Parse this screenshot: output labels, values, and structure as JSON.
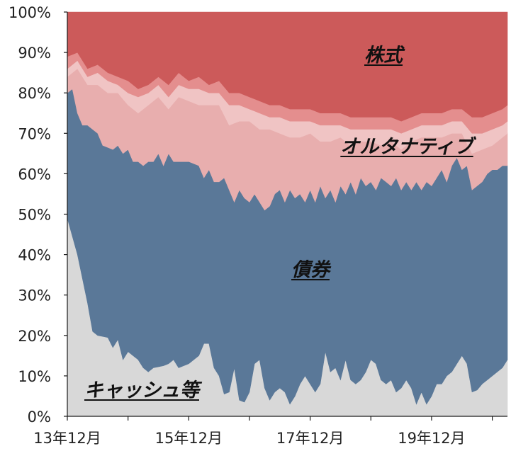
{
  "chart_data": {
    "type": "area",
    "stacked": true,
    "percent": true,
    "title": "",
    "xlabel": "",
    "ylabel": "",
    "ylim": [
      0,
      100
    ],
    "yticks": [
      "0%",
      "10%",
      "20%",
      "30%",
      "40%",
      "50%",
      "60%",
      "70%",
      "80%",
      "90%",
      "100%"
    ],
    "xticks": [
      {
        "x": 0,
        "label": "13年12月"
      },
      {
        "x": 24,
        "label": "15年12月"
      },
      {
        "x": 48,
        "label": "17年12月"
      },
      {
        "x": 72,
        "label": "19年12月"
      }
    ],
    "grid": false,
    "legend": "none",
    "x_count": 88,
    "series": [
      {
        "name": "キャッシュ等",
        "color": "#d8d8d8",
        "label": "キャッシュ等",
        "points": [
          [
            0,
            49
          ],
          [
            2,
            40
          ],
          [
            4,
            28
          ],
          [
            5,
            21
          ],
          [
            6,
            20
          ],
          [
            8,
            19.5
          ],
          [
            9,
            17
          ],
          [
            10,
            19
          ],
          [
            11,
            14
          ],
          [
            12,
            16
          ],
          [
            13,
            15
          ],
          [
            14,
            14
          ],
          [
            15,
            12
          ],
          [
            16,
            11
          ],
          [
            17,
            12
          ],
          [
            19,
            12.5
          ],
          [
            20,
            13
          ],
          [
            21,
            14
          ],
          [
            22,
            12
          ],
          [
            24,
            13
          ],
          [
            26,
            15
          ],
          [
            27,
            18
          ],
          [
            28,
            18
          ],
          [
            29,
            12
          ],
          [
            30,
            10
          ],
          [
            31,
            5.5
          ],
          [
            32,
            6
          ],
          [
            33,
            12
          ],
          [
            34,
            4
          ],
          [
            35,
            3.5
          ],
          [
            36,
            6
          ],
          [
            37,
            13
          ],
          [
            38,
            14
          ],
          [
            39,
            7
          ],
          [
            40,
            4
          ],
          [
            41,
            6
          ],
          [
            42,
            7
          ],
          [
            43,
            6
          ],
          [
            44,
            3
          ],
          [
            45,
            5
          ],
          [
            46,
            8
          ],
          [
            47,
            10
          ],
          [
            48,
            8
          ],
          [
            49,
            6
          ],
          [
            50,
            8
          ],
          [
            51,
            16
          ],
          [
            52,
            11
          ],
          [
            53,
            12
          ],
          [
            54,
            9
          ],
          [
            55,
            14
          ],
          [
            56,
            9
          ],
          [
            57,
            8
          ],
          [
            58,
            9
          ],
          [
            59,
            11
          ],
          [
            60,
            14
          ],
          [
            61,
            13
          ],
          [
            62,
            9
          ],
          [
            63,
            8
          ],
          [
            64,
            9
          ],
          [
            65,
            6
          ],
          [
            66,
            7
          ],
          [
            67,
            9
          ],
          [
            68,
            7
          ],
          [
            69,
            3
          ],
          [
            70,
            6
          ],
          [
            71,
            3
          ],
          [
            72,
            5
          ],
          [
            73,
            8
          ],
          [
            74,
            8
          ],
          [
            75,
            10
          ],
          [
            76,
            11
          ],
          [
            77,
            13
          ],
          [
            78,
            15
          ],
          [
            79,
            13
          ],
          [
            80,
            6
          ],
          [
            81,
            6.5
          ],
          [
            82,
            8
          ],
          [
            83,
            9
          ],
          [
            84,
            10
          ],
          [
            85,
            11
          ],
          [
            86,
            12
          ],
          [
            87,
            14
          ]
        ]
      },
      {
        "name": "債券",
        "color": "#5a7898",
        "label": "債券",
        "points": [
          [
            0,
            80
          ],
          [
            1,
            81
          ],
          [
            2,
            75
          ],
          [
            3,
            72
          ],
          [
            4,
            72
          ],
          [
            5,
            71
          ],
          [
            6,
            70
          ],
          [
            7,
            67
          ],
          [
            9,
            66
          ],
          [
            10,
            67
          ],
          [
            11,
            65
          ],
          [
            12,
            66
          ],
          [
            13,
            63
          ],
          [
            14,
            63
          ],
          [
            15,
            62
          ],
          [
            16,
            63
          ],
          [
            17,
            63
          ],
          [
            18,
            65
          ],
          [
            19,
            62
          ],
          [
            20,
            65
          ],
          [
            21,
            63
          ],
          [
            23,
            63
          ],
          [
            24,
            63
          ],
          [
            26,
            62
          ],
          [
            27,
            59
          ],
          [
            28,
            61
          ],
          [
            29,
            58
          ],
          [
            30,
            58
          ],
          [
            31,
            59
          ],
          [
            32,
            56
          ],
          [
            33,
            53
          ],
          [
            34,
            56
          ],
          [
            35,
            54
          ],
          [
            36,
            53
          ],
          [
            37,
            55
          ],
          [
            38,
            53
          ],
          [
            39,
            51
          ],
          [
            40,
            52
          ],
          [
            41,
            55
          ],
          [
            42,
            56
          ],
          [
            43,
            53
          ],
          [
            44,
            56
          ],
          [
            45,
            54
          ],
          [
            46,
            55
          ],
          [
            47,
            53
          ],
          [
            48,
            56
          ],
          [
            49,
            53
          ],
          [
            50,
            57
          ],
          [
            51,
            54
          ],
          [
            52,
            56
          ],
          [
            53,
            53
          ],
          [
            54,
            57
          ],
          [
            55,
            55
          ],
          [
            56,
            58
          ],
          [
            57,
            55
          ],
          [
            58,
            59
          ],
          [
            59,
            57
          ],
          [
            60,
            58
          ],
          [
            61,
            56
          ],
          [
            62,
            59
          ],
          [
            63,
            58
          ],
          [
            64,
            57
          ],
          [
            65,
            59
          ],
          [
            66,
            56
          ],
          [
            67,
            58
          ],
          [
            68,
            56
          ],
          [
            69,
            58
          ],
          [
            70,
            56
          ],
          [
            71,
            58
          ],
          [
            72,
            57
          ],
          [
            73,
            59
          ],
          [
            74,
            61
          ],
          [
            75,
            58
          ],
          [
            76,
            62
          ],
          [
            77,
            64
          ],
          [
            78,
            61
          ],
          [
            79,
            62
          ],
          [
            80,
            56
          ],
          [
            81,
            57
          ],
          [
            82,
            58
          ],
          [
            83,
            60
          ],
          [
            84,
            61
          ],
          [
            85,
            61
          ],
          [
            86,
            62
          ],
          [
            87,
            62
          ]
        ]
      },
      {
        "name": "オルタナティブ",
        "color": "#e8aeae",
        "label": "オルタナティブ",
        "points": [
          [
            0,
            84
          ],
          [
            2,
            86
          ],
          [
            4,
            82
          ],
          [
            6,
            82
          ],
          [
            8,
            80
          ],
          [
            10,
            80
          ],
          [
            12,
            77
          ],
          [
            14,
            75
          ],
          [
            16,
            77
          ],
          [
            18,
            79
          ],
          [
            20,
            76
          ],
          [
            22,
            79
          ],
          [
            24,
            78
          ],
          [
            26,
            77
          ],
          [
            28,
            77
          ],
          [
            30,
            77
          ],
          [
            32,
            72
          ],
          [
            34,
            73
          ],
          [
            36,
            73
          ],
          [
            38,
            71
          ],
          [
            40,
            71
          ],
          [
            42,
            70
          ],
          [
            44,
            69
          ],
          [
            46,
            69
          ],
          [
            48,
            70
          ],
          [
            50,
            68
          ],
          [
            52,
            68
          ],
          [
            54,
            69
          ],
          [
            56,
            67
          ],
          [
            58,
            68
          ],
          [
            60,
            68
          ],
          [
            62,
            67
          ],
          [
            64,
            68
          ],
          [
            66,
            66
          ],
          [
            68,
            68
          ],
          [
            70,
            69
          ],
          [
            72,
            69
          ],
          [
            74,
            69
          ],
          [
            76,
            70
          ],
          [
            78,
            70
          ],
          [
            80,
            65
          ],
          [
            82,
            66
          ],
          [
            84,
            67
          ],
          [
            86,
            69
          ],
          [
            87,
            70
          ]
        ]
      },
      {
        "name": "",
        "color": "#f0c4c4",
        "label": "",
        "points": [
          [
            0,
            86
          ],
          [
            2,
            88
          ],
          [
            4,
            84
          ],
          [
            6,
            85
          ],
          [
            8,
            83
          ],
          [
            10,
            82
          ],
          [
            12,
            80
          ],
          [
            14,
            79
          ],
          [
            16,
            80
          ],
          [
            18,
            82
          ],
          [
            20,
            79
          ],
          [
            22,
            82
          ],
          [
            24,
            81
          ],
          [
            26,
            81
          ],
          [
            28,
            80
          ],
          [
            30,
            80
          ],
          [
            32,
            77
          ],
          [
            34,
            77
          ],
          [
            36,
            76
          ],
          [
            38,
            75
          ],
          [
            40,
            74
          ],
          [
            42,
            74
          ],
          [
            44,
            73
          ],
          [
            46,
            73
          ],
          [
            48,
            73
          ],
          [
            50,
            72
          ],
          [
            52,
            72
          ],
          [
            54,
            72
          ],
          [
            56,
            71
          ],
          [
            58,
            71
          ],
          [
            60,
            71
          ],
          [
            62,
            71
          ],
          [
            64,
            71
          ],
          [
            66,
            70
          ],
          [
            68,
            71
          ],
          [
            70,
            72
          ],
          [
            72,
            72
          ],
          [
            74,
            72
          ],
          [
            76,
            73
          ],
          [
            78,
            73
          ],
          [
            80,
            70
          ],
          [
            82,
            70
          ],
          [
            84,
            71
          ],
          [
            86,
            72
          ],
          [
            87,
            73
          ]
        ]
      },
      {
        "name": "",
        "color": "#e48e8e",
        "label": "",
        "points": [
          [
            0,
            89
          ],
          [
            2,
            90
          ],
          [
            4,
            86
          ],
          [
            6,
            87
          ],
          [
            8,
            85
          ],
          [
            10,
            84
          ],
          [
            12,
            83
          ],
          [
            14,
            81
          ],
          [
            16,
            82
          ],
          [
            18,
            84
          ],
          [
            20,
            82
          ],
          [
            22,
            85
          ],
          [
            24,
            83
          ],
          [
            26,
            84
          ],
          [
            28,
            82
          ],
          [
            30,
            83
          ],
          [
            32,
            80
          ],
          [
            34,
            80
          ],
          [
            36,
            79
          ],
          [
            38,
            78
          ],
          [
            40,
            77
          ],
          [
            42,
            77
          ],
          [
            44,
            76
          ],
          [
            46,
            76
          ],
          [
            48,
            76
          ],
          [
            50,
            75
          ],
          [
            52,
            75
          ],
          [
            54,
            75
          ],
          [
            56,
            74
          ],
          [
            58,
            74
          ],
          [
            60,
            74
          ],
          [
            62,
            74
          ],
          [
            64,
            74
          ],
          [
            66,
            73
          ],
          [
            68,
            74
          ],
          [
            70,
            75
          ],
          [
            72,
            75
          ],
          [
            74,
            75
          ],
          [
            76,
            76
          ],
          [
            78,
            76
          ],
          [
            80,
            74
          ],
          [
            82,
            74
          ],
          [
            84,
            75
          ],
          [
            86,
            76
          ],
          [
            87,
            77
          ]
        ]
      },
      {
        "name": "株式",
        "color": "#cc5a5a",
        "label": "株式",
        "points": [
          [
            0,
            100
          ],
          [
            87,
            100
          ]
        ]
      }
    ]
  }
}
